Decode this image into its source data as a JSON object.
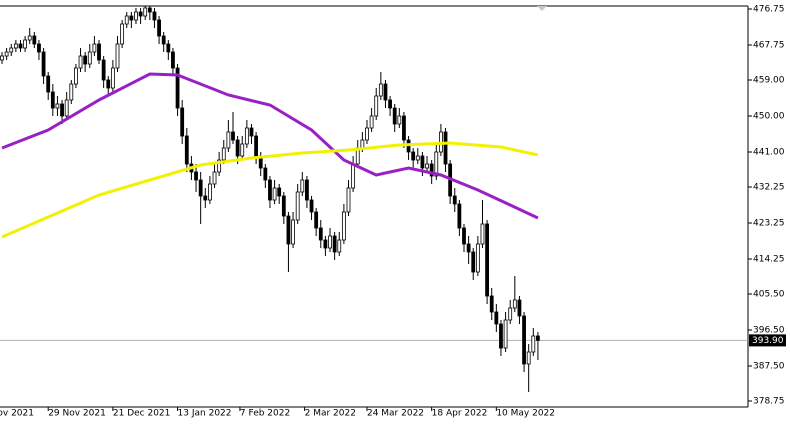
{
  "chart_data": {
    "type": "candlestick",
    "ylim": [
      377.25,
      477.5
    ],
    "yticks": [
      378.75,
      {
        "value": 387.5,
        "label": "387.50"
      },
      {
        "value": 396.5,
        "label": "396.50"
      },
      {
        "value": 405.5,
        "label": "405.50"
      },
      414.25,
      423.25,
      432.25,
      {
        "value": 441,
        "label": "441.00"
      },
      {
        "value": 450,
        "label": "450.00"
      },
      {
        "value": 459,
        "label": "459.00"
      },
      467.75,
      476.75
    ],
    "xlim": [
      0,
      162
    ],
    "xticks": [
      {
        "value": -1,
        "label": "ov 2021"
      },
      {
        "value": 10,
        "label": "29 Nov 2021"
      },
      {
        "value": 24,
        "label": "21 Dec 2021"
      },
      {
        "value": 38,
        "label": "13 Jan 2022"
      },
      {
        "value": 51.5,
        "label": "7 Feb 2022"
      },
      {
        "value": 65.5,
        "label": "2 Mar 2022"
      },
      {
        "value": 79,
        "label": "24 Mar 2022"
      },
      {
        "value": 93,
        "label": "18 Apr 2022"
      },
      {
        "value": 107,
        "label": "10 May 2022"
      }
    ],
    "current_price": {
      "value": 393.9,
      "label": "393.90"
    },
    "up_color": "#ffffff",
    "down_color": "#000000",
    "ohlc": [
      [
        464,
        466,
        463,
        465
      ],
      [
        465,
        467,
        464,
        466
      ],
      [
        466,
        468,
        465,
        467
      ],
      [
        467,
        469,
        466,
        468
      ],
      [
        468,
        469,
        466,
        467
      ],
      [
        467,
        470,
        466,
        469
      ],
      [
        469,
        472,
        468,
        470
      ],
      [
        470,
        471,
        467,
        468
      ],
      [
        468,
        469,
        464,
        466
      ],
      [
        466,
        467,
        458,
        460
      ],
      [
        460,
        461,
        454,
        456
      ],
      [
        456,
        458,
        450,
        452
      ],
      [
        452,
        455,
        450,
        453
      ],
      [
        453,
        454,
        448,
        450
      ],
      [
        450,
        456,
        449,
        454
      ],
      [
        454,
        459,
        453,
        458
      ],
      [
        458,
        463,
        457,
        462
      ],
      [
        462,
        467,
        461,
        465
      ],
      [
        465,
        466,
        461,
        463
      ],
      [
        463,
        468,
        462,
        466
      ],
      [
        466,
        470,
        465,
        468
      ],
      [
        468,
        469,
        463,
        464
      ],
      [
        464,
        465,
        457,
        459
      ],
      [
        459,
        460,
        455,
        457
      ],
      [
        457,
        464,
        456,
        462
      ],
      [
        462,
        470,
        461,
        468
      ],
      [
        468,
        474,
        467,
        473
      ],
      [
        473,
        476,
        472,
        475
      ],
      [
        475,
        476,
        472,
        474
      ],
      [
        474,
        477,
        473,
        476
      ],
      [
        476,
        477,
        473,
        475
      ],
      [
        475,
        477.4,
        474,
        477
      ],
      [
        477,
        477.4,
        474,
        476
      ],
      [
        476,
        477,
        472,
        474
      ],
      [
        474,
        475,
        468,
        470
      ],
      [
        470,
        471,
        466,
        468
      ],
      [
        468,
        469,
        464,
        466
      ],
      [
        466,
        467,
        460,
        462
      ],
      [
        462,
        463,
        450,
        452
      ],
      [
        452,
        454,
        443,
        445
      ],
      [
        445,
        447,
        436,
        438
      ],
      [
        438,
        440,
        434,
        436
      ],
      [
        436,
        438,
        431,
        434
      ],
      [
        434,
        436,
        423,
        430
      ],
      [
        430,
        432,
        427,
        429
      ],
      [
        429,
        435,
        428,
        433
      ],
      [
        433,
        438,
        432,
        436
      ],
      [
        436,
        441,
        435,
        439
      ],
      [
        439,
        444,
        438,
        442
      ],
      [
        442,
        449,
        441,
        446
      ],
      [
        446,
        451,
        443,
        444
      ],
      [
        444,
        445,
        438,
        440
      ],
      [
        440,
        445,
        439,
        443
      ],
      [
        443,
        449,
        442,
        447
      ],
      [
        447,
        448,
        443,
        445
      ],
      [
        445,
        446,
        438,
        440
      ],
      [
        440,
        441,
        435,
        437
      ],
      [
        437,
        438,
        432,
        434
      ],
      [
        434,
        435,
        427,
        429
      ],
      [
        429,
        434,
        428,
        432
      ],
      [
        432,
        433,
        428,
        430
      ],
      [
        430,
        431,
        423,
        425
      ],
      [
        425,
        426,
        411,
        418
      ],
      [
        418,
        426,
        417,
        424
      ],
      [
        424,
        433,
        423,
        431
      ],
      [
        431,
        436,
        430,
        434
      ],
      [
        434,
        435,
        427,
        429
      ],
      [
        429,
        430,
        424,
        426
      ],
      [
        426,
        427,
        420,
        422
      ],
      [
        422,
        424,
        417,
        419
      ],
      [
        419,
        420,
        415,
        417
      ],
      [
        417,
        422,
        416,
        420
      ],
      [
        420,
        421,
        414,
        416
      ],
      [
        416,
        421,
        415,
        419
      ],
      [
        419,
        428,
        418,
        426
      ],
      [
        426,
        434,
        425,
        432
      ],
      [
        432,
        440,
        431,
        438
      ],
      [
        438,
        444,
        437,
        442
      ],
      [
        442,
        446,
        441,
        444
      ],
      [
        444,
        449,
        443,
        447
      ],
      [
        447,
        452,
        446,
        450
      ],
      [
        450,
        457,
        449,
        455
      ],
      [
        455,
        461,
        454,
        458
      ],
      [
        458,
        459,
        452,
        454
      ],
      [
        454,
        455,
        450,
        452
      ],
      [
        452,
        453,
        446,
        448
      ],
      [
        448,
        452,
        447,
        450
      ],
      [
        450,
        451,
        442,
        444
      ],
      [
        444,
        445,
        439,
        441
      ],
      [
        441,
        442,
        437,
        439
      ],
      [
        439,
        442,
        438,
        440
      ],
      [
        440,
        441,
        435,
        437
      ],
      [
        437,
        440,
        436,
        438
      ],
      [
        438,
        439,
        433,
        435
      ],
      [
        435,
        443,
        434,
        441
      ],
      [
        441,
        448,
        440,
        446
      ],
      [
        446,
        447,
        436,
        438
      ],
      [
        438,
        439,
        428,
        430
      ],
      [
        430,
        432,
        426,
        428
      ],
      [
        428,
        429,
        420,
        422
      ],
      [
        422,
        423,
        416,
        418
      ],
      [
        418,
        420,
        413,
        416
      ],
      [
        416,
        417,
        409,
        411
      ],
      [
        411,
        420,
        410,
        418
      ],
      [
        418,
        429,
        417,
        423
      ],
      [
        423,
        424,
        403,
        405
      ],
      [
        405,
        407,
        399,
        401
      ],
      [
        401,
        403,
        396,
        398
      ],
      [
        398,
        399,
        390,
        392
      ],
      [
        392,
        401,
        391,
        399
      ],
      [
        399,
        404,
        398,
        402
      ],
      [
        402,
        410,
        401,
        404
      ],
      [
        404,
        405,
        398,
        400
      ],
      [
        400,
        401,
        386,
        388
      ],
      [
        388,
        393,
        381,
        391
      ],
      [
        391,
        397,
        390,
        395
      ],
      [
        395,
        396,
        389,
        393.9
      ]
    ],
    "series": [
      {
        "color": "#9a1fc4",
        "x": [
          0,
          10,
          21,
          32,
          38,
          49,
          58,
          67,
          74,
          81,
          88,
          95,
          103,
          110,
          116
        ],
        "values": [
          442,
          446.5,
          454,
          460.5,
          460.25,
          455.25,
          452.75,
          446.5,
          439,
          435.25,
          437,
          435.25,
          431.5,
          427.75,
          424.5
        ]
      },
      {
        "color": "#f2f200",
        "x": [
          0,
          11,
          21,
          32,
          43,
          54,
          65,
          75,
          86,
          97,
          108,
          116
        ],
        "values": [
          419.75,
          425.25,
          430.25,
          434,
          437.75,
          439.5,
          440.75,
          441.5,
          442.75,
          443.25,
          442.25,
          440.25
        ]
      }
    ]
  }
}
